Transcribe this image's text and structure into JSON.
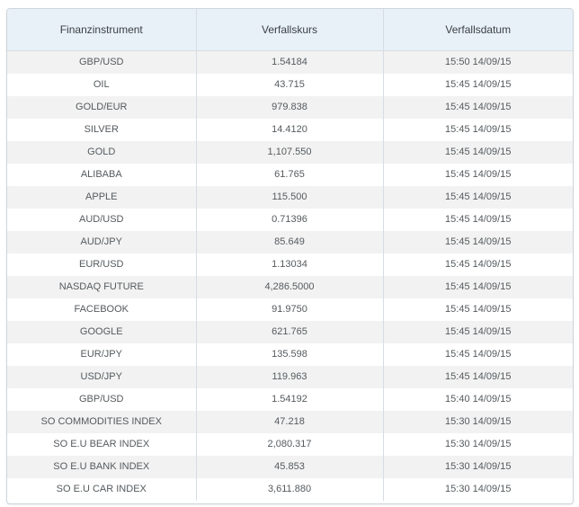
{
  "table": {
    "headers": [
      "Finanzinstrument",
      "Verfallskurs",
      "Verfallsdatum"
    ],
    "rows": [
      {
        "instrument": "GBP/USD",
        "price": "1.54184",
        "date": "15:50 14/09/15"
      },
      {
        "instrument": "OIL",
        "price": "43.715",
        "date": "15:45 14/09/15"
      },
      {
        "instrument": "GOLD/EUR",
        "price": "979.838",
        "date": "15:45 14/09/15"
      },
      {
        "instrument": "SILVER",
        "price": "14.4120",
        "date": "15:45 14/09/15"
      },
      {
        "instrument": "GOLD",
        "price": "1,107.550",
        "date": "15:45 14/09/15"
      },
      {
        "instrument": "ALIBABA",
        "price": "61.765",
        "date": "15:45 14/09/15"
      },
      {
        "instrument": "APPLE",
        "price": "115.500",
        "date": "15:45 14/09/15"
      },
      {
        "instrument": "AUD/USD",
        "price": "0.71396",
        "date": "15:45 14/09/15"
      },
      {
        "instrument": "AUD/JPY",
        "price": "85.649",
        "date": "15:45 14/09/15"
      },
      {
        "instrument": "EUR/USD",
        "price": "1.13034",
        "date": "15:45 14/09/15"
      },
      {
        "instrument": "NASDAQ FUTURE",
        "price": "4,286.5000",
        "date": "15:45 14/09/15"
      },
      {
        "instrument": "FACEBOOK",
        "price": "91.9750",
        "date": "15:45 14/09/15"
      },
      {
        "instrument": "GOOGLE",
        "price": "621.765",
        "date": "15:45 14/09/15"
      },
      {
        "instrument": "EUR/JPY",
        "price": "135.598",
        "date": "15:45 14/09/15"
      },
      {
        "instrument": "USD/JPY",
        "price": "119.963",
        "date": "15:45 14/09/15"
      },
      {
        "instrument": "GBP/USD",
        "price": "1.54192",
        "date": "15:40 14/09/15"
      },
      {
        "instrument": "SO COMMODITIES INDEX",
        "price": "47.218",
        "date": "15:30 14/09/15"
      },
      {
        "instrument": "SO E.U BEAR INDEX",
        "price": "2,080.317",
        "date": "15:30 14/09/15"
      },
      {
        "instrument": "SO E.U BANK INDEX",
        "price": "45.853",
        "date": "15:30 14/09/15"
      },
      {
        "instrument": "SO E.U CAR INDEX",
        "price": "3,611.880",
        "date": "15:30 14/09/15"
      }
    ]
  },
  "colors": {
    "header_bg": "#e8f1f8",
    "row_alt_bg": "#f2f2f2",
    "border": "#d6dde2",
    "text": "#555a5e"
  }
}
